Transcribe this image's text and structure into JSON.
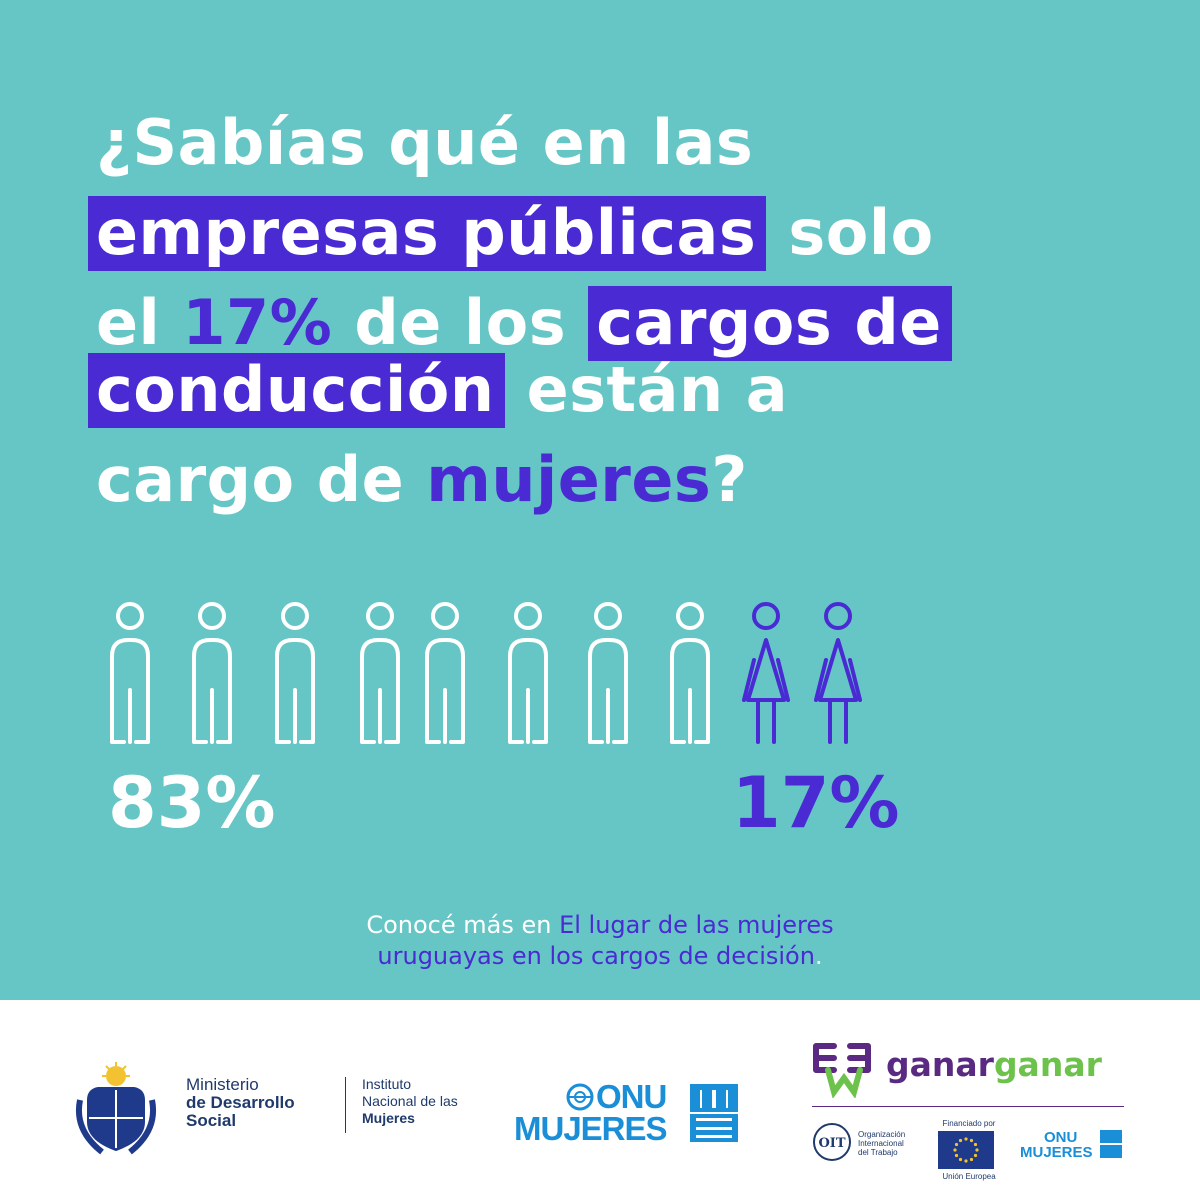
{
  "headline": {
    "line1": "¿Sabías qué en las",
    "line2_highlight": "empresas públicas",
    "line2_rest": " solo",
    "line3_pre": "el ",
    "line3_accent": "17%",
    "line3_mid": " de los ",
    "line3_highlight": "cargos de",
    "line4_highlight": "conducción",
    "line4_rest": " están a",
    "line5_pre": "cargo de ",
    "line5_accent": "mujeres",
    "line5_post": "?"
  },
  "infographic": {
    "men_percent": "83%",
    "women_percent": "17%",
    "men_icons": 8,
    "women_icons": 2,
    "men_color": "#ffffff",
    "women_color": "#4a2ad3"
  },
  "more_info": {
    "prefix": "Conocé más en ",
    "link_part1": "El lugar de las mujeres",
    "link_part2": "uruguayas en los cargos de decisión",
    "suffix": "."
  },
  "footer": {
    "mides_line1": "Ministerio",
    "mides_line2": "de Desarrollo",
    "mides_line3": "Social",
    "inmujeres_line1": "Instituto",
    "inmujeres_line2": "Nacional de las",
    "inmujeres_line3": "Mujeres",
    "onu_line1": "ONU",
    "onu_line2": "MUJERES",
    "ganar_part1": "ganar",
    "ganar_part2": "ganar",
    "oit_line1": "Organización",
    "oit_line2": "Internacional",
    "oit_line3": "del Trabajo",
    "eu_top": "Financiado por",
    "eu_bottom": "Unión Europea",
    "onu_small_line1": "ONU",
    "onu_small_line2": "MUJERES"
  },
  "colors": {
    "background": "#66c6c5",
    "accent": "#4a2ad3",
    "white": "#ffffff",
    "footer_bg": "#ffffff"
  }
}
